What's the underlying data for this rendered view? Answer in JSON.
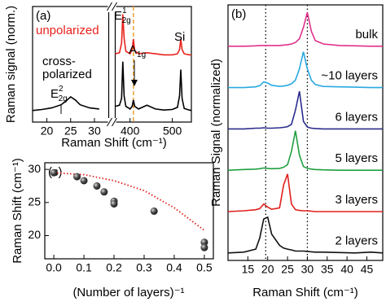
{
  "chart_data": [
    {
      "type": "line",
      "panel_label": "(a)",
      "ylabel": "Raman signal (norm.)",
      "xlabel": "Raman Shift (cm⁻¹)",
      "xlim": [
        [
          17,
          33
        ],
        [
          365,
          545
        ]
      ],
      "xticks": [
        20,
        25,
        30,
        400,
        500
      ],
      "ylim": [
        0,
        2.2
      ],
      "vline": 408,
      "vline_color": "#f0a030",
      "x": [
        17,
        19,
        21,
        23,
        24,
        25,
        26,
        27,
        29,
        31,
        33,
        365,
        375,
        380,
        383,
        386,
        390,
        400,
        405,
        408,
        411,
        420,
        440,
        460,
        480,
        500,
        512,
        517,
        520,
        523,
        528,
        540,
        545
      ],
      "series": [
        {
          "name": "unpolarized",
          "color": "#e8221c",
          "values": [
            null,
            null,
            null,
            null,
            null,
            null,
            null,
            null,
            null,
            null,
            null,
            1.3,
            1.32,
            1.5,
            2.05,
            1.6,
            1.35,
            1.3,
            1.38,
            1.58,
            1.36,
            1.3,
            1.32,
            1.3,
            1.28,
            1.28,
            1.3,
            1.38,
            1.58,
            1.38,
            1.3,
            1.28,
            1.28
          ]
        },
        {
          "color": "#000000",
          "values": [
            0.22,
            0.24,
            0.27,
            0.33,
            0.4,
            0.48,
            0.42,
            0.33,
            0.27,
            0.25,
            null,
            0.3,
            0.32,
            0.45,
            1.15,
            0.5,
            0.3,
            0.25,
            0.3,
            0.42,
            0.3,
            0.25,
            0.32,
            0.25,
            0.23,
            0.24,
            0.28,
            0.5,
            1.0,
            0.45,
            0.26,
            0.23,
            0.22
          ]
        }
      ],
      "annotations": {
        "cross": [
          "cross-",
          "polarized"
        ],
        "peaks": [
          {
            "base": "E",
            "sub": "2g",
            "sup": "2"
          },
          {
            "base": "E",
            "sub": "2g",
            "sup": "1"
          },
          {
            "base": "A",
            "sub": "1g"
          },
          {
            "base": "Si"
          }
        ]
      }
    },
    {
      "type": "line",
      "panel_label": "(b)",
      "ylabel": "Raman Signal (normalized)",
      "xlabel": "Raman Shift (cm⁻¹)",
      "xlim": [
        10,
        49
      ],
      "xticks": [
        15,
        20,
        25,
        30,
        35,
        40,
        45
      ],
      "ylim": [
        0,
        6.8
      ],
      "vlines": [
        19.5,
        30
      ],
      "x": [
        10,
        14,
        17,
        18,
        19,
        20,
        21,
        23,
        24,
        25,
        26,
        27,
        28,
        29,
        30,
        31,
        32,
        34,
        38,
        42,
        46,
        49
      ],
      "series": [
        {
          "name": "2 layers",
          "color": "#111111",
          "values": [
            0.2,
            0.22,
            0.3,
            0.6,
            1.1,
            1.15,
            0.7,
            0.4,
            0.33,
            0.3,
            0.28,
            0.25,
            0.25,
            0.25,
            0.24,
            0.23,
            0.22,
            0.22,
            0.21,
            0.2,
            0.22,
            0.2
          ]
        },
        {
          "name": "3 layers",
          "color": "#e0201c",
          "values": [
            1.3,
            1.32,
            1.35,
            1.38,
            1.5,
            1.42,
            1.36,
            1.4,
            2.0,
            2.3,
            1.5,
            1.35,
            1.33,
            1.32,
            1.32,
            1.31,
            1.3,
            1.3,
            1.3,
            1.3,
            1.3,
            1.3
          ]
        },
        {
          "name": "5 layers",
          "color": "#1fa040",
          "values": [
            2.4,
            2.42,
            2.43,
            2.44,
            2.46,
            2.45,
            2.44,
            2.45,
            2.48,
            2.55,
            2.9,
            3.45,
            2.8,
            2.5,
            2.45,
            2.43,
            2.42,
            2.41,
            2.4,
            2.4,
            2.4,
            2.4
          ]
        },
        {
          "name": "6 layers",
          "color": "#2b2b8c",
          "values": [
            3.5,
            3.5,
            3.52,
            3.52,
            3.53,
            3.52,
            3.52,
            3.53,
            3.54,
            3.56,
            3.62,
            4.0,
            4.5,
            3.7,
            3.55,
            3.52,
            3.51,
            3.5,
            3.5,
            3.5,
            3.5,
            3.5
          ]
        },
        {
          "name": "~10 layers",
          "color": "#29a9e0",
          "values": [
            4.6,
            4.6,
            4.62,
            4.65,
            4.75,
            4.72,
            4.66,
            4.63,
            4.64,
            4.66,
            4.7,
            4.8,
            5.1,
            5.55,
            5.1,
            4.8,
            4.68,
            4.63,
            4.62,
            4.61,
            4.6,
            4.6
          ]
        },
        {
          "name": "bulk",
          "color": "#e0308a",
          "values": [
            5.7,
            5.7,
            5.71,
            5.72,
            5.72,
            5.72,
            5.72,
            5.72,
            5.73,
            5.74,
            5.76,
            5.8,
            5.9,
            6.2,
            6.6,
            6.1,
            5.85,
            5.76,
            5.72,
            5.71,
            5.7,
            5.7
          ]
        }
      ]
    },
    {
      "type": "scatter",
      "panel_label": "(c)",
      "ylabel": "Raman Shift (cm⁻¹)",
      "xlabel": "(Number of layers)⁻¹",
      "xlim": [
        -0.03,
        0.53
      ],
      "xticks": [
        {
          "value": 0,
          "label": "0.0"
        },
        0.1,
        0.2,
        0.3,
        0.4,
        0.5
      ],
      "ylim": [
        16.5,
        31
      ],
      "yticks": [
        20,
        25,
        30
      ],
      "x": [
        0,
        0.077,
        0.1,
        0.143,
        0.167,
        0.2,
        0.2,
        0.333,
        0.5,
        0.5
      ],
      "values": [
        29.5,
        28.9,
        28.3,
        27.5,
        26.6,
        25.2,
        24.8,
        23.7,
        19.0,
        18.2
      ],
      "fit": {
        "color": "#e0201c",
        "x": [
          0,
          0.1,
          0.2,
          0.3,
          0.4,
          0.5
        ],
        "values": [
          29.5,
          29.2,
          28.3,
          26.8,
          24.2,
          20.8
        ]
      }
    }
  ]
}
